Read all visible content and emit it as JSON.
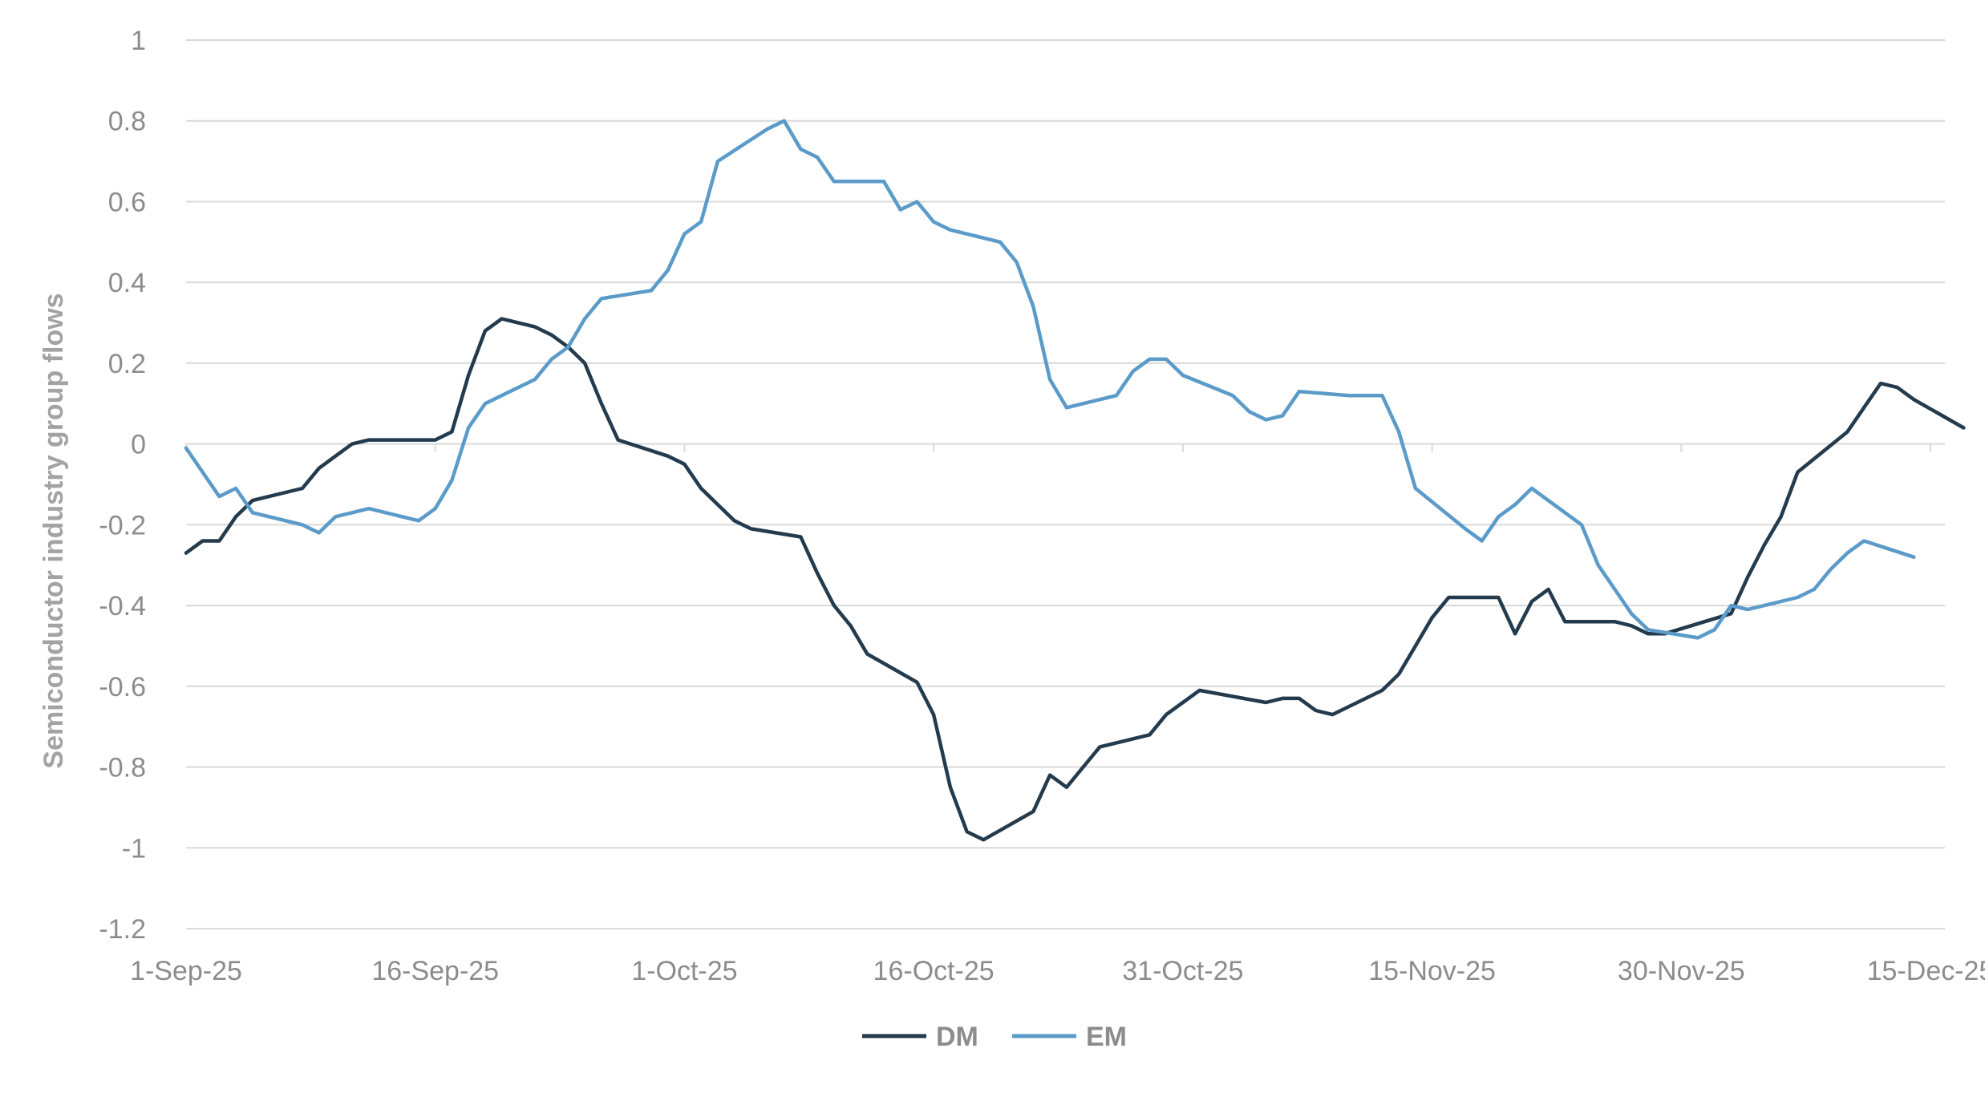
{
  "chart_data": {
    "type": "line",
    "title": "",
    "ylabel": "Semiconductor industry group flows",
    "xlabel": "",
    "ylim": [
      -1.2,
      1
    ],
    "yticks": [
      1,
      0.8,
      0.6,
      0.4,
      0.2,
      0,
      -0.2,
      -0.4,
      -0.6,
      -0.8,
      -1,
      -1.2
    ],
    "ytick_labels": [
      "1",
      "0.8",
      "0.6",
      "0.4",
      "0.2",
      "0",
      "-0.2",
      "-0.4",
      "-0.6",
      "-0.8",
      "-1",
      "-1.2"
    ],
    "xlim": [
      "2025-09-01",
      "2025-12-15"
    ],
    "xtick_labels": [
      "1-Sep-25",
      "16-Sep-25",
      "1-Oct-25",
      "16-Oct-25",
      "31-Oct-25",
      "15-Nov-25",
      "30-Nov-25",
      "15-Dec-25"
    ],
    "grid": "horizontal",
    "legend": "bottom-center",
    "series": [
      {
        "name": "DM",
        "color": "#243b4e",
        "points": [
          [
            "2025-09-01",
            -0.27
          ],
          [
            "2025-09-02",
            -0.24
          ],
          [
            "2025-09-03",
            -0.24
          ],
          [
            "2025-09-04",
            -0.18
          ],
          [
            "2025-09-05",
            -0.14
          ],
          [
            "2025-09-08",
            -0.11
          ],
          [
            "2025-09-09",
            -0.06
          ],
          [
            "2025-09-10",
            -0.03
          ],
          [
            "2025-09-11",
            0.0
          ],
          [
            "2025-09-12",
            0.01
          ],
          [
            "2025-09-15",
            0.01
          ],
          [
            "2025-09-16",
            0.01
          ],
          [
            "2025-09-17",
            0.03
          ],
          [
            "2025-09-18",
            0.17
          ],
          [
            "2025-09-19",
            0.28
          ],
          [
            "2025-09-20",
            0.31
          ],
          [
            "2025-09-22",
            0.29
          ],
          [
            "2025-09-23",
            0.27
          ],
          [
            "2025-09-24",
            0.24
          ],
          [
            "2025-09-25",
            0.2
          ],
          [
            "2025-09-26",
            0.1
          ],
          [
            "2025-09-27",
            0.01
          ],
          [
            "2025-09-30",
            -0.03
          ],
          [
            "2025-10-01",
            -0.05
          ],
          [
            "2025-10-02",
            -0.11
          ],
          [
            "2025-10-03",
            -0.15
          ],
          [
            "2025-10-04",
            -0.19
          ],
          [
            "2025-10-05",
            -0.21
          ],
          [
            "2025-10-08",
            -0.23
          ],
          [
            "2025-10-09",
            -0.32
          ],
          [
            "2025-10-10",
            -0.4
          ],
          [
            "2025-10-11",
            -0.45
          ],
          [
            "2025-10-12",
            -0.52
          ],
          [
            "2025-10-15",
            -0.59
          ],
          [
            "2025-10-16",
            -0.67
          ],
          [
            "2025-10-17",
            -0.85
          ],
          [
            "2025-10-18",
            -0.96
          ],
          [
            "2025-10-19",
            -0.98
          ],
          [
            "2025-10-22",
            -0.91
          ],
          [
            "2025-10-23",
            -0.82
          ],
          [
            "2025-10-24",
            -0.85
          ],
          [
            "2025-10-25",
            -0.8
          ],
          [
            "2025-10-26",
            -0.75
          ],
          [
            "2025-10-29",
            -0.72
          ],
          [
            "2025-10-30",
            -0.67
          ],
          [
            "2025-10-31",
            -0.64
          ],
          [
            "2025-11-01",
            -0.61
          ],
          [
            "2025-11-05",
            -0.64
          ],
          [
            "2025-11-06",
            -0.63
          ],
          [
            "2025-11-07",
            -0.63
          ],
          [
            "2025-11-08",
            -0.66
          ],
          [
            "2025-11-09",
            -0.67
          ],
          [
            "2025-11-12",
            -0.61
          ],
          [
            "2025-11-13",
            -0.57
          ],
          [
            "2025-11-14",
            -0.5
          ],
          [
            "2025-11-15",
            -0.43
          ],
          [
            "2025-11-16",
            -0.38
          ],
          [
            "2025-11-19",
            -0.38
          ],
          [
            "2025-11-20",
            -0.47
          ],
          [
            "2025-11-21",
            -0.39
          ],
          [
            "2025-11-22",
            -0.36
          ],
          [
            "2025-11-23",
            -0.44
          ],
          [
            "2025-11-26",
            -0.44
          ],
          [
            "2025-11-27",
            -0.45
          ],
          [
            "2025-11-28",
            -0.47
          ],
          [
            "2025-11-29",
            -0.47
          ],
          [
            "2025-12-03",
            -0.42
          ],
          [
            "2025-12-04",
            -0.33
          ],
          [
            "2025-12-05",
            -0.25
          ],
          [
            "2025-12-06",
            -0.18
          ],
          [
            "2025-12-07",
            -0.07
          ],
          [
            "2025-12-10",
            0.03
          ],
          [
            "2025-12-11",
            0.09
          ],
          [
            "2025-12-12",
            0.15
          ],
          [
            "2025-12-13",
            0.14
          ],
          [
            "2025-12-14",
            0.11
          ],
          [
            "2025-12-17",
            0.04
          ]
        ]
      },
      {
        "name": "EM",
        "color": "#5b9bc9",
        "points": [
          [
            "2025-09-01",
            -0.01
          ],
          [
            "2025-09-02",
            -0.07
          ],
          [
            "2025-09-03",
            -0.13
          ],
          [
            "2025-09-04",
            -0.11
          ],
          [
            "2025-09-05",
            -0.17
          ],
          [
            "2025-09-08",
            -0.2
          ],
          [
            "2025-09-09",
            -0.22
          ],
          [
            "2025-09-10",
            -0.18
          ],
          [
            "2025-09-11",
            -0.17
          ],
          [
            "2025-09-12",
            -0.16
          ],
          [
            "2025-09-15",
            -0.19
          ],
          [
            "2025-09-16",
            -0.16
          ],
          [
            "2025-09-17",
            -0.09
          ],
          [
            "2025-09-18",
            0.04
          ],
          [
            "2025-09-19",
            0.1
          ],
          [
            "2025-09-22",
            0.16
          ],
          [
            "2025-09-23",
            0.21
          ],
          [
            "2025-09-24",
            0.24
          ],
          [
            "2025-09-25",
            0.31
          ],
          [
            "2025-09-26",
            0.36
          ],
          [
            "2025-09-29",
            0.38
          ],
          [
            "2025-09-30",
            0.43
          ],
          [
            "2025-10-01",
            0.52
          ],
          [
            "2025-10-02",
            0.55
          ],
          [
            "2025-10-03",
            0.7
          ],
          [
            "2025-10-06",
            0.78
          ],
          [
            "2025-10-07",
            0.8
          ],
          [
            "2025-10-08",
            0.73
          ],
          [
            "2025-10-09",
            0.71
          ],
          [
            "2025-10-10",
            0.65
          ],
          [
            "2025-10-13",
            0.65
          ],
          [
            "2025-10-14",
            0.58
          ],
          [
            "2025-10-15",
            0.6
          ],
          [
            "2025-10-16",
            0.55
          ],
          [
            "2025-10-17",
            0.53
          ],
          [
            "2025-10-20",
            0.5
          ],
          [
            "2025-10-21",
            0.45
          ],
          [
            "2025-10-22",
            0.34
          ],
          [
            "2025-10-23",
            0.16
          ],
          [
            "2025-10-24",
            0.09
          ],
          [
            "2025-10-27",
            0.12
          ],
          [
            "2025-10-28",
            0.18
          ],
          [
            "2025-10-29",
            0.21
          ],
          [
            "2025-10-30",
            0.21
          ],
          [
            "2025-10-31",
            0.17
          ],
          [
            "2025-11-03",
            0.12
          ],
          [
            "2025-11-04",
            0.08
          ],
          [
            "2025-11-05",
            0.06
          ],
          [
            "2025-11-06",
            0.07
          ],
          [
            "2025-11-07",
            0.13
          ],
          [
            "2025-11-10",
            0.12
          ],
          [
            "2025-11-11",
            0.12
          ],
          [
            "2025-11-12",
            0.12
          ],
          [
            "2025-11-13",
            0.03
          ],
          [
            "2025-11-14",
            -0.11
          ],
          [
            "2025-11-17",
            -0.21
          ],
          [
            "2025-11-18",
            -0.24
          ],
          [
            "2025-11-19",
            -0.18
          ],
          [
            "2025-11-20",
            -0.15
          ],
          [
            "2025-11-21",
            -0.11
          ],
          [
            "2025-11-24",
            -0.2
          ],
          [
            "2025-11-25",
            -0.3
          ],
          [
            "2025-11-26",
            -0.36
          ],
          [
            "2025-11-27",
            -0.42
          ],
          [
            "2025-11-28",
            -0.46
          ],
          [
            "2025-12-01",
            -0.48
          ],
          [
            "2025-12-02",
            -0.46
          ],
          [
            "2025-12-03",
            -0.4
          ],
          [
            "2025-12-04",
            -0.41
          ],
          [
            "2025-12-07",
            -0.38
          ],
          [
            "2025-12-08",
            -0.36
          ],
          [
            "2025-12-09",
            -0.31
          ],
          [
            "2025-12-10",
            -0.27
          ],
          [
            "2025-12-11",
            -0.24
          ],
          [
            "2025-12-14",
            -0.28
          ]
        ]
      }
    ]
  }
}
